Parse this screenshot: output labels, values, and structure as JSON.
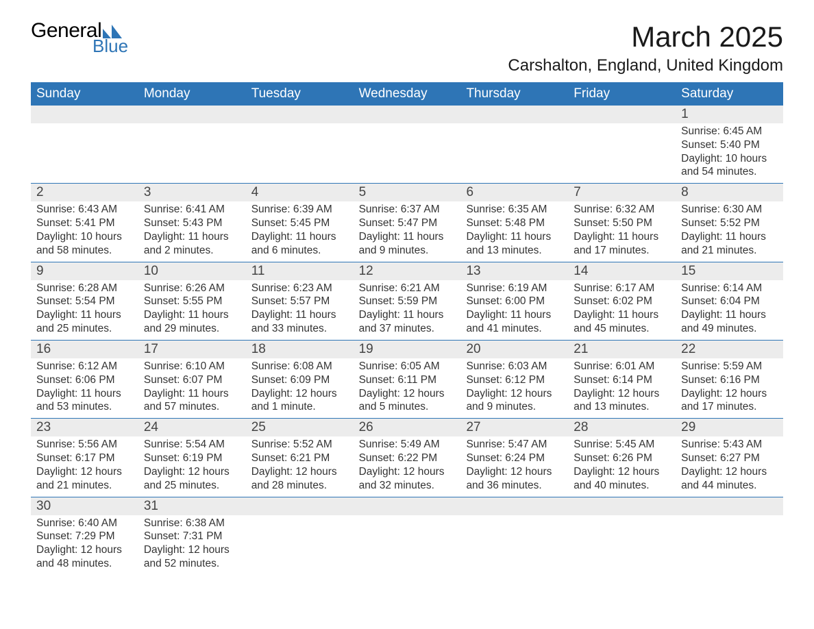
{
  "brand": {
    "name_left": "General",
    "name_right": "Blue"
  },
  "colors": {
    "header_bg": "#2e75b6",
    "header_text": "#ffffff",
    "row_divider": "#2e75b6",
    "daynum_bg": "#ececec",
    "daynum_text": "#444444",
    "body_text": "#333333",
    "page_bg": "#ffffff",
    "brand_accent": "#2e75b6",
    "brand_black": "#000000"
  },
  "typography": {
    "month_title_fontsize_pt": 32,
    "location_fontsize_pt": 18,
    "day_header_fontsize_pt": 14,
    "day_num_fontsize_pt": 14,
    "body_fontsize_pt": 12,
    "font_family": "Arial"
  },
  "title": {
    "month": "March 2025",
    "location": "Carshalton, England, United Kingdom"
  },
  "days_of_week": [
    "Sunday",
    "Monday",
    "Tuesday",
    "Wednesday",
    "Thursday",
    "Friday",
    "Saturday"
  ],
  "weeks": [
    [
      {
        "empty": true
      },
      {
        "empty": true
      },
      {
        "empty": true
      },
      {
        "empty": true
      },
      {
        "empty": true
      },
      {
        "empty": true
      },
      {
        "day": "1",
        "sunrise": "Sunrise: 6:45 AM",
        "sunset": "Sunset: 5:40 PM",
        "daylight": "Daylight: 10 hours and 54 minutes."
      }
    ],
    [
      {
        "day": "2",
        "sunrise": "Sunrise: 6:43 AM",
        "sunset": "Sunset: 5:41 PM",
        "daylight": "Daylight: 10 hours and 58 minutes."
      },
      {
        "day": "3",
        "sunrise": "Sunrise: 6:41 AM",
        "sunset": "Sunset: 5:43 PM",
        "daylight": "Daylight: 11 hours and 2 minutes."
      },
      {
        "day": "4",
        "sunrise": "Sunrise: 6:39 AM",
        "sunset": "Sunset: 5:45 PM",
        "daylight": "Daylight: 11 hours and 6 minutes."
      },
      {
        "day": "5",
        "sunrise": "Sunrise: 6:37 AM",
        "sunset": "Sunset: 5:47 PM",
        "daylight": "Daylight: 11 hours and 9 minutes."
      },
      {
        "day": "6",
        "sunrise": "Sunrise: 6:35 AM",
        "sunset": "Sunset: 5:48 PM",
        "daylight": "Daylight: 11 hours and 13 minutes."
      },
      {
        "day": "7",
        "sunrise": "Sunrise: 6:32 AM",
        "sunset": "Sunset: 5:50 PM",
        "daylight": "Daylight: 11 hours and 17 minutes."
      },
      {
        "day": "8",
        "sunrise": "Sunrise: 6:30 AM",
        "sunset": "Sunset: 5:52 PM",
        "daylight": "Daylight: 11 hours and 21 minutes."
      }
    ],
    [
      {
        "day": "9",
        "sunrise": "Sunrise: 6:28 AM",
        "sunset": "Sunset: 5:54 PM",
        "daylight": "Daylight: 11 hours and 25 minutes."
      },
      {
        "day": "10",
        "sunrise": "Sunrise: 6:26 AM",
        "sunset": "Sunset: 5:55 PM",
        "daylight": "Daylight: 11 hours and 29 minutes."
      },
      {
        "day": "11",
        "sunrise": "Sunrise: 6:23 AM",
        "sunset": "Sunset: 5:57 PM",
        "daylight": "Daylight: 11 hours and 33 minutes."
      },
      {
        "day": "12",
        "sunrise": "Sunrise: 6:21 AM",
        "sunset": "Sunset: 5:59 PM",
        "daylight": "Daylight: 11 hours and 37 minutes."
      },
      {
        "day": "13",
        "sunrise": "Sunrise: 6:19 AM",
        "sunset": "Sunset: 6:00 PM",
        "daylight": "Daylight: 11 hours and 41 minutes."
      },
      {
        "day": "14",
        "sunrise": "Sunrise: 6:17 AM",
        "sunset": "Sunset: 6:02 PM",
        "daylight": "Daylight: 11 hours and 45 minutes."
      },
      {
        "day": "15",
        "sunrise": "Sunrise: 6:14 AM",
        "sunset": "Sunset: 6:04 PM",
        "daylight": "Daylight: 11 hours and 49 minutes."
      }
    ],
    [
      {
        "day": "16",
        "sunrise": "Sunrise: 6:12 AM",
        "sunset": "Sunset: 6:06 PM",
        "daylight": "Daylight: 11 hours and 53 minutes."
      },
      {
        "day": "17",
        "sunrise": "Sunrise: 6:10 AM",
        "sunset": "Sunset: 6:07 PM",
        "daylight": "Daylight: 11 hours and 57 minutes."
      },
      {
        "day": "18",
        "sunrise": "Sunrise: 6:08 AM",
        "sunset": "Sunset: 6:09 PM",
        "daylight": "Daylight: 12 hours and 1 minute."
      },
      {
        "day": "19",
        "sunrise": "Sunrise: 6:05 AM",
        "sunset": "Sunset: 6:11 PM",
        "daylight": "Daylight: 12 hours and 5 minutes."
      },
      {
        "day": "20",
        "sunrise": "Sunrise: 6:03 AM",
        "sunset": "Sunset: 6:12 PM",
        "daylight": "Daylight: 12 hours and 9 minutes."
      },
      {
        "day": "21",
        "sunrise": "Sunrise: 6:01 AM",
        "sunset": "Sunset: 6:14 PM",
        "daylight": "Daylight: 12 hours and 13 minutes."
      },
      {
        "day": "22",
        "sunrise": "Sunrise: 5:59 AM",
        "sunset": "Sunset: 6:16 PM",
        "daylight": "Daylight: 12 hours and 17 minutes."
      }
    ],
    [
      {
        "day": "23",
        "sunrise": "Sunrise: 5:56 AM",
        "sunset": "Sunset: 6:17 PM",
        "daylight": "Daylight: 12 hours and 21 minutes."
      },
      {
        "day": "24",
        "sunrise": "Sunrise: 5:54 AM",
        "sunset": "Sunset: 6:19 PM",
        "daylight": "Daylight: 12 hours and 25 minutes."
      },
      {
        "day": "25",
        "sunrise": "Sunrise: 5:52 AM",
        "sunset": "Sunset: 6:21 PM",
        "daylight": "Daylight: 12 hours and 28 minutes."
      },
      {
        "day": "26",
        "sunrise": "Sunrise: 5:49 AM",
        "sunset": "Sunset: 6:22 PM",
        "daylight": "Daylight: 12 hours and 32 minutes."
      },
      {
        "day": "27",
        "sunrise": "Sunrise: 5:47 AM",
        "sunset": "Sunset: 6:24 PM",
        "daylight": "Daylight: 12 hours and 36 minutes."
      },
      {
        "day": "28",
        "sunrise": "Sunrise: 5:45 AM",
        "sunset": "Sunset: 6:26 PM",
        "daylight": "Daylight: 12 hours and 40 minutes."
      },
      {
        "day": "29",
        "sunrise": "Sunrise: 5:43 AM",
        "sunset": "Sunset: 6:27 PM",
        "daylight": "Daylight: 12 hours and 44 minutes."
      }
    ],
    [
      {
        "day": "30",
        "sunrise": "Sunrise: 6:40 AM",
        "sunset": "Sunset: 7:29 PM",
        "daylight": "Daylight: 12 hours and 48 minutes."
      },
      {
        "day": "31",
        "sunrise": "Sunrise: 6:38 AM",
        "sunset": "Sunset: 7:31 PM",
        "daylight": "Daylight: 12 hours and 52 minutes."
      },
      {
        "empty": true
      },
      {
        "empty": true
      },
      {
        "empty": true
      },
      {
        "empty": true
      },
      {
        "empty": true
      }
    ]
  ]
}
